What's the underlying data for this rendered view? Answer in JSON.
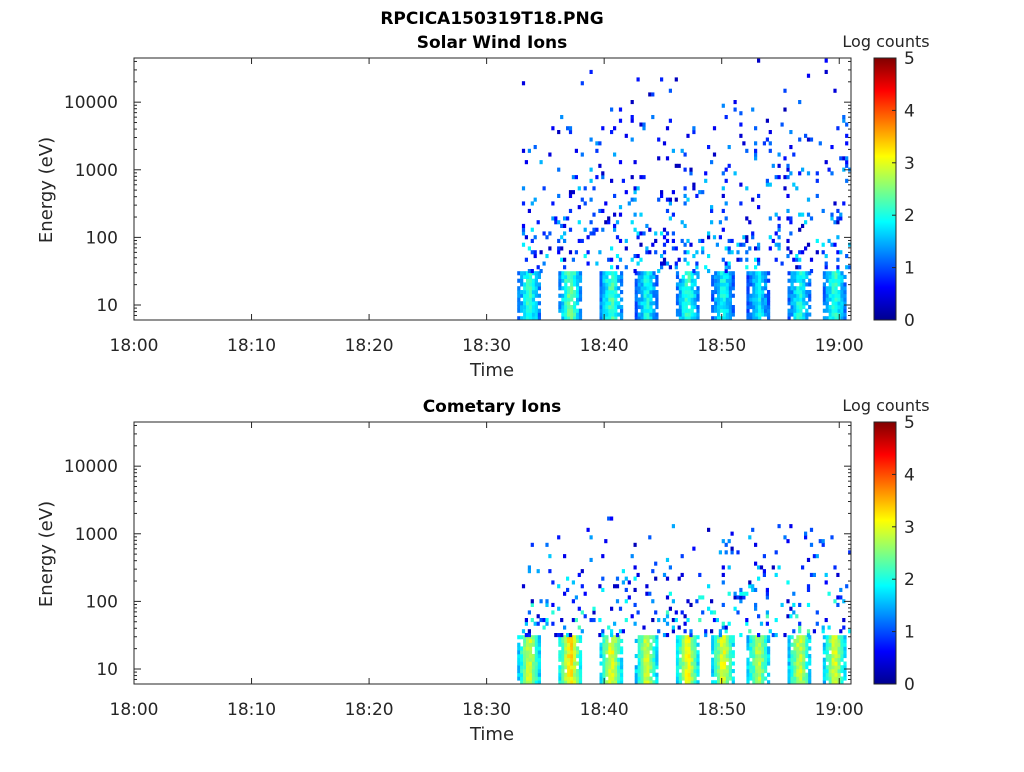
{
  "figure": {
    "title": "RPCICA150319T18.PNG"
  },
  "colors": {
    "colormap": [
      "#00008f",
      "#0000ff",
      "#0080ff",
      "#00ffff",
      "#80ff80",
      "#ffff00",
      "#ff8000",
      "#ff0000",
      "#800000"
    ],
    "axis": "#262626",
    "background": "#ffffff"
  },
  "chart_data": [
    {
      "type": "heatmap",
      "title": "Solar Wind Ions",
      "xlabel": "Time",
      "ylabel": "Energy (eV)",
      "x_ticks": [
        "18:00",
        "18:10",
        "18:20",
        "18:30",
        "18:40",
        "18:50",
        "19:00"
      ],
      "xlim": [
        "18:00",
        "19:01"
      ],
      "y_scale": "log",
      "y_ticks": [
        10,
        100,
        1000,
        10000
      ],
      "y_tick_labels": [
        "10",
        "100",
        "1000",
        "10000"
      ],
      "ylim": [
        6,
        45000
      ],
      "colorbar": {
        "label": "Log counts",
        "range": [
          0,
          5
        ],
        "ticks": [
          "0",
          "1",
          "2",
          "3",
          "4",
          "5"
        ]
      },
      "data_start": "18:33",
      "bursts": [
        {
          "time": "18:33.5",
          "value": 2.2
        },
        {
          "time": "18:37",
          "value": 2.5
        },
        {
          "time": "18:40.5",
          "value": 2.3
        },
        {
          "time": "18:43.5",
          "value": 2.0
        },
        {
          "time": "18:47",
          "value": 2.2
        },
        {
          "time": "18:50",
          "value": 2.0
        },
        {
          "time": "18:53",
          "value": 1.9
        },
        {
          "time": "18:56.5",
          "value": 2.1
        },
        {
          "time": "18:59.5",
          "value": 2.2
        }
      ],
      "burst_energy_eV": [
        6,
        30
      ],
      "scatter_energy_eV": [
        30,
        40000
      ],
      "grid": false
    },
    {
      "type": "heatmap",
      "title": "Cometary Ions",
      "xlabel": "Time",
      "ylabel": "Energy (eV)",
      "x_ticks": [
        "18:00",
        "18:10",
        "18:20",
        "18:30",
        "18:40",
        "18:50",
        "19:00"
      ],
      "xlim": [
        "18:00",
        "19:01"
      ],
      "y_scale": "log",
      "y_ticks": [
        10,
        100,
        1000,
        10000
      ],
      "y_tick_labels": [
        "10",
        "100",
        "1000",
        "10000"
      ],
      "ylim": [
        6,
        45000
      ],
      "colorbar": {
        "label": "Log counts",
        "range": [
          0,
          5
        ],
        "ticks": [
          "0",
          "1",
          "2",
          "3",
          "4",
          "5"
        ]
      },
      "data_start": "18:33",
      "bursts": [
        {
          "time": "18:33.5",
          "value": 3.0
        },
        {
          "time": "18:37",
          "value": 3.4
        },
        {
          "time": "18:40.5",
          "value": 3.1
        },
        {
          "time": "18:43.5",
          "value": 3.0
        },
        {
          "time": "18:47",
          "value": 3.2
        },
        {
          "time": "18:50",
          "value": 3.1
        },
        {
          "time": "18:53",
          "value": 2.9
        },
        {
          "time": "18:56.5",
          "value": 3.0
        },
        {
          "time": "18:59.5",
          "value": 3.0
        }
      ],
      "burst_energy_eV": [
        6,
        30
      ],
      "scatter_energy_eV": [
        30,
        2500
      ],
      "grid": false
    }
  ]
}
